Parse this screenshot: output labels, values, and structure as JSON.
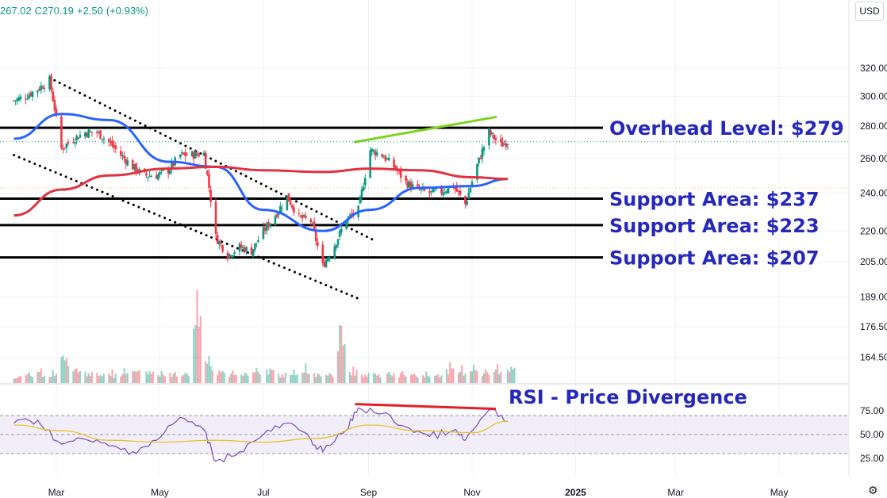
{
  "ohlc": {
    "low": "267.02",
    "close": "C270.19",
    "change": "+2.50",
    "change_pct": "(+0.93%)"
  },
  "currency": "USD",
  "icons": {
    "settings": "gear-icon"
  },
  "colors": {
    "up": "#089981",
    "down": "#f23645",
    "ma_fast": "#2962ff",
    "ma_slow": "#e0323f",
    "rsi": "#7e57c2",
    "rsi_ma": "#e6c228",
    "annotation": "#2528b8",
    "trend_green": "#7ed321",
    "divergence_red": "#e41e26"
  },
  "chart_data": [
    {
      "type": "candlestick",
      "title": "",
      "x_ticks": [
        "Mar",
        "May",
        "Jul",
        "Sep",
        "Nov",
        "2025",
        "Mar",
        "May"
      ],
      "y_ticks": [
        "320.00",
        "300.00",
        "280.00",
        "260.00",
        "240.00",
        "220.00",
        "205.00",
        "189.00",
        "176.50",
        "164.50"
      ],
      "y_scale": "log",
      "grid": true,
      "levels": [
        {
          "label": "Overhead Level: $279",
          "value": 279
        },
        {
          "label": "Support Area: $237",
          "value": 237
        },
        {
          "label": "Support Area: $223",
          "value": 223
        },
        {
          "label": "Support Area: $207",
          "value": 207
        }
      ],
      "last_close": 270.19,
      "price_path": [
        [
          "2024-02-05",
          297
        ],
        [
          "2024-02-12",
          300
        ],
        [
          "2024-02-19",
          305
        ],
        [
          "2024-02-26",
          311
        ],
        [
          "2024-03-04",
          266
        ],
        [
          "2024-03-11",
          272
        ],
        [
          "2024-03-18",
          276
        ],
        [
          "2024-03-25",
          276
        ],
        [
          "2024-04-01",
          270
        ],
        [
          "2024-04-08",
          262
        ],
        [
          "2024-04-15",
          255
        ],
        [
          "2024-04-22",
          250
        ],
        [
          "2024-04-29",
          250
        ],
        [
          "2024-05-06",
          253
        ],
        [
          "2024-05-13",
          262
        ],
        [
          "2024-05-20",
          262
        ],
        [
          "2024-05-27",
          263
        ],
        [
          "2024-06-03",
          217
        ],
        [
          "2024-06-10",
          208
        ],
        [
          "2024-06-17",
          212
        ],
        [
          "2024-06-24",
          210
        ],
        [
          "2024-07-01",
          220
        ],
        [
          "2024-07-08",
          228
        ],
        [
          "2024-07-15",
          238
        ],
        [
          "2024-07-22",
          227
        ],
        [
          "2024-07-29",
          225
        ],
        [
          "2024-08-05",
          203
        ],
        [
          "2024-08-12",
          213
        ],
        [
          "2024-08-19",
          226
        ],
        [
          "2024-08-26",
          231
        ],
        [
          "2024-09-02",
          265
        ],
        [
          "2024-09-09",
          262
        ],
        [
          "2024-09-16",
          255
        ],
        [
          "2024-09-23",
          246
        ],
        [
          "2024-09-30",
          242
        ],
        [
          "2024-10-07",
          240
        ],
        [
          "2024-10-14",
          241
        ],
        [
          "2024-10-21",
          244
        ],
        [
          "2024-10-28",
          234
        ],
        [
          "2024-11-04",
          256
        ],
        [
          "2024-11-11",
          276
        ],
        [
          "2024-11-18",
          268
        ],
        [
          "2024-11-22",
          270.19
        ]
      ],
      "moving_averages": [
        {
          "type": "fast",
          "values": [
            [
              "2024-02-05",
              272
            ],
            [
              "2024-03-04",
              288
            ],
            [
              "2024-04-01",
              284
            ],
            [
              "2024-05-06",
              258
            ],
            [
              "2024-06-03",
              255
            ],
            [
              "2024-07-01",
              231
            ],
            [
              "2024-08-05",
              220
            ],
            [
              "2024-09-02",
              231
            ],
            [
              "2024-10-01",
              243
            ],
            [
              "2024-11-01",
              244
            ],
            [
              "2024-11-22",
              248
            ]
          ]
        },
        {
          "type": "slow",
          "values": [
            [
              "2024-02-05",
              228
            ],
            [
              "2024-03-04",
              242
            ],
            [
              "2024-04-01",
              250
            ],
            [
              "2024-05-06",
              254
            ],
            [
              "2024-06-03",
              255
            ],
            [
              "2024-07-01",
              253
            ],
            [
              "2024-08-05",
              252
            ],
            [
              "2024-09-02",
              254
            ],
            [
              "2024-10-01",
              253
            ],
            [
              "2024-11-01",
              249
            ],
            [
              "2024-11-22",
              248
            ]
          ]
        }
      ],
      "trendlines": [
        {
          "style": "dotted",
          "from": [
            "2024-02-26",
            313
          ],
          "to": [
            "2024-09-05",
            215
          ]
        },
        {
          "style": "dotted",
          "from": [
            "2024-02-05",
            262
          ],
          "to": [
            "2024-08-27",
            188
          ]
        },
        {
          "style": "solid-green",
          "from": [
            "2024-08-24",
            270
          ],
          "to": [
            "2024-11-15",
            286
          ]
        }
      ],
      "volume": [
        0.1,
        0.12,
        0.15,
        0.14,
        0.38,
        0.2,
        0.16,
        0.14,
        0.13,
        0.15,
        0.18,
        0.16,
        0.14,
        0.15,
        0.16,
        0.9,
        0.3,
        0.18,
        0.14,
        0.13,
        0.16,
        0.2,
        0.14,
        0.13,
        0.22,
        0.14,
        0.16,
        0.78,
        0.18,
        0.14,
        0.13,
        0.15,
        0.14,
        0.13,
        0.12,
        0.14,
        0.2,
        0.18,
        0.24,
        0.16,
        0.2,
        0.26
      ]
    },
    {
      "type": "line",
      "title": "",
      "y_ticks": [
        "75.00",
        "50.00",
        "25.00"
      ],
      "ylim": [
        15,
        90
      ],
      "bands": {
        "upper": 70,
        "middle": 50,
        "lower": 30
      },
      "annotation": "RSI - Price Divergence",
      "divergence_line": {
        "from": [
          "2024-08-24",
          82
        ],
        "to": [
          "2024-11-15",
          77
        ]
      },
      "series": [
        {
          "values": [
            [
              "2024-02-05",
              62
            ],
            [
              "2024-02-19",
              65
            ],
            [
              "2024-03-04",
              40
            ],
            [
              "2024-03-18",
              45
            ],
            [
              "2024-04-01",
              38
            ],
            [
              "2024-04-15",
              32
            ],
            [
              "2024-04-29",
              44
            ],
            [
              "2024-05-13",
              68
            ],
            [
              "2024-05-27",
              55
            ],
            [
              "2024-06-03",
              22
            ],
            [
              "2024-06-17",
              32
            ],
            [
              "2024-07-01",
              50
            ],
            [
              "2024-07-15",
              62
            ],
            [
              "2024-07-29",
              45
            ],
            [
              "2024-08-05",
              32
            ],
            [
              "2024-08-19",
              55
            ],
            [
              "2024-08-26",
              78
            ],
            [
              "2024-09-09",
              72
            ],
            [
              "2024-09-23",
              58
            ],
            [
              "2024-10-07",
              48
            ],
            [
              "2024-10-21",
              54
            ],
            [
              "2024-10-28",
              44
            ],
            [
              "2024-11-11",
              76
            ],
            [
              "2024-11-22",
              64
            ]
          ]
        },
        {
          "values": [
            [
              "2024-02-05",
              60
            ],
            [
              "2024-03-04",
              54
            ],
            [
              "2024-04-01",
              44
            ],
            [
              "2024-05-01",
              42
            ],
            [
              "2024-06-03",
              44
            ],
            [
              "2024-07-01",
              42
            ],
            [
              "2024-08-01",
              46
            ],
            [
              "2024-09-02",
              60
            ],
            [
              "2024-10-01",
              54
            ],
            [
              "2024-11-01",
              52
            ],
            [
              "2024-11-22",
              64
            ]
          ]
        }
      ]
    }
  ]
}
